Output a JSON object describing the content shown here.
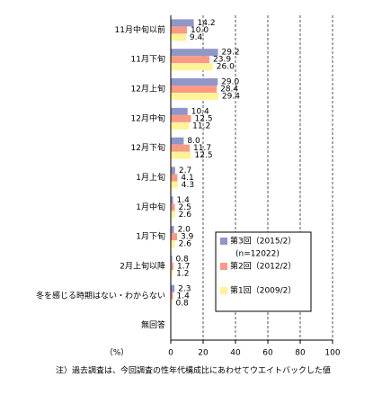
{
  "chart_data": {
    "type": "bar",
    "orientation": "horizontal",
    "categories": [
      "11月中旬以前",
      "11月下旬",
      "12月上旬",
      "12月中旬",
      "12月下旬",
      "1月上旬",
      "1月中旬",
      "1月下旬",
      "2月上旬以降",
      "冬を感じる時期はない・わからない",
      "無回答"
    ],
    "series": [
      {
        "name": "第3回（2015/2）",
        "color": "#8f96c8",
        "values": [
          14.2,
          29.2,
          29.0,
          10.4,
          8.0,
          2.7,
          1.4,
          2.0,
          0.8,
          2.3,
          null
        ],
        "value_labels": [
          "14.2",
          "29.2",
          "29.0",
          "10.4",
          "8.0",
          "2.7",
          "1.4",
          "2.0",
          "0.8",
          "2.3",
          null
        ]
      },
      {
        "name": "第2回（2012/2）",
        "color": "#f99a85",
        "values": [
          10.0,
          23.9,
          28.4,
          12.5,
          11.7,
          4.1,
          2.5,
          3.9,
          1.7,
          1.4,
          null
        ],
        "value_labels": [
          "10.0",
          "23.9",
          "28.4",
          "12.5",
          "11.7",
          "4.1",
          "2.5",
          "3.9",
          "1.7",
          "1.4",
          null
        ]
      },
      {
        "name": "第1回（2009/2）",
        "color": "#fff39a",
        "values": [
          9.4,
          26.0,
          29.4,
          11.2,
          12.5,
          4.3,
          2.6,
          2.6,
          1.2,
          0.8,
          null
        ],
        "value_labels": [
          "9.4",
          "26.0",
          "29.4",
          "11.2",
          "12.5",
          "4.3",
          "2.6",
          "2.6",
          "1.2",
          "0.8",
          null
        ]
      }
    ],
    "legend_note": "(n=12022)",
    "xlim": [
      0,
      100
    ],
    "xticks": [
      0,
      20,
      40,
      60,
      80,
      100
    ],
    "grid": true,
    "x_label": "（%）",
    "note": "注）過去調査は、今回調査の性年代構成比にあわせてウエイトバックした値"
  }
}
